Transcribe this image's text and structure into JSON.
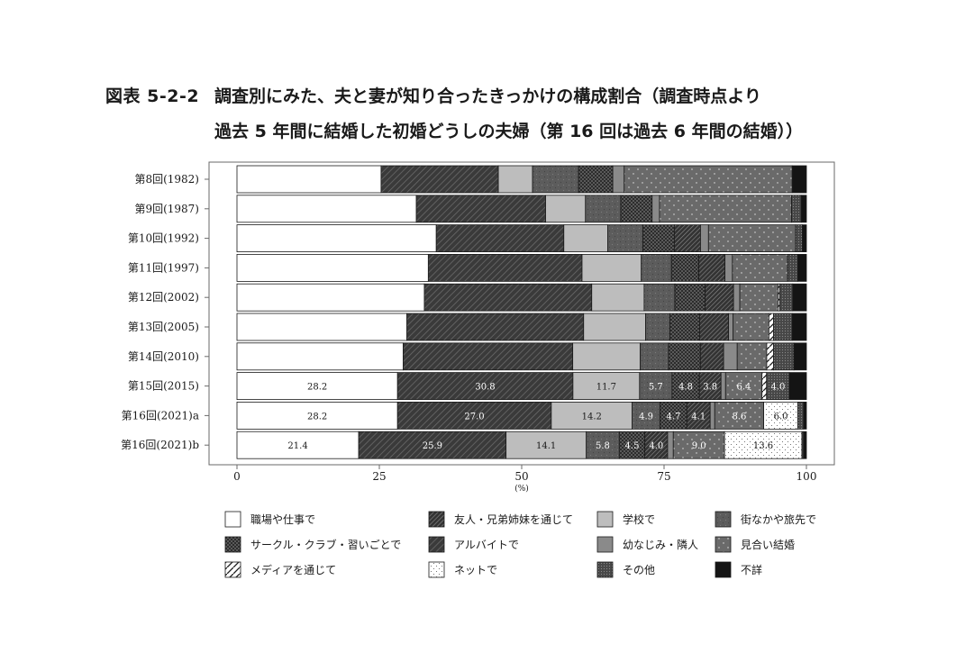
{
  "title": {
    "label": "図表 5-2-2",
    "line1": "調査別にみた、夫と妻が知り合ったきっかけの構成割合（調査時点より",
    "line2": "過去 5 年間に結婚した初婚どうしの夫婦（第 16 回は過去 6 年間の結婚））"
  },
  "chart_data": {
    "type": "bar",
    "orientation": "horizontal-stacked-100",
    "xlabel": "(%)",
    "xlim": [
      0,
      100
    ],
    "xticks": [
      0,
      25,
      50,
      75,
      100
    ],
    "categories": [
      "第8回(1982)",
      "第9回(1987)",
      "第10回(1992)",
      "第11回(1997)",
      "第12回(2002)",
      "第13回(2005)",
      "第14回(2010)",
      "第15回(2015)",
      "第16回(2021)a",
      "第16回(2021)b"
    ],
    "series": [
      {
        "name": "職場や仕事で",
        "fill": "white",
        "color": "#ffffff",
        "values": [
          25.3,
          31.5,
          35.0,
          33.6,
          32.9,
          29.9,
          29.3,
          28.2,
          28.2,
          21.4
        ],
        "labels": [
          "",
          "",
          "",
          "",
          "",
          "",
          "",
          "28.2",
          "28.2",
          "21.4"
        ]
      },
      {
        "name": "アルバイトで",
        "fill": "fwddiag",
        "color": "#3e3e3e",
        "values": [
          20.6,
          22.7,
          22.4,
          27.0,
          29.4,
          31.1,
          29.9,
          30.8,
          27.0,
          25.9
        ],
        "labels": [
          "",
          "",
          "",
          "",
          "",
          "",
          "",
          "30.8",
          "27.0",
          "25.9"
        ]
      },
      {
        "name": "学校で",
        "fill": "lightgray",
        "color": "#bdbdbd",
        "values": [
          6.0,
          7.0,
          7.7,
          10.4,
          9.2,
          10.9,
          11.9,
          11.7,
          14.2,
          14.1
        ],
        "labels": [
          "",
          "",
          "",
          "",
          "",
          "",
          "",
          "11.7",
          "14.2",
          "14.1"
        ]
      },
      {
        "name": "街なかや旅先で",
        "fill": "fuzz",
        "color": "#5c5c5c",
        "values": [
          8.1,
          6.2,
          6.2,
          5.3,
          5.4,
          4.3,
          5.0,
          5.7,
          4.9,
          5.8
        ],
        "labels": [
          "",
          "",
          "",
          "",
          "",
          "",
          "",
          "5.7",
          "4.9",
          "5.8"
        ]
      },
      {
        "name": "サークル・クラブ・習いごとで",
        "fill": "checker",
        "color": "#333333",
        "values": [
          6.0,
          5.5,
          5.5,
          4.8,
          5.3,
          5.2,
          5.6,
          4.8,
          4.7,
          4.5
        ],
        "labels": [
          "",
          "",
          "",
          "",
          "",
          "",
          "",
          "4.8",
          "4.7",
          "4.5"
        ]
      },
      {
        "name": "友人・兄弟姉妹を通じて",
        "fill": "densediag",
        "color": "#4a4a4a",
        "values": [
          0.0,
          0.0,
          4.6,
          4.6,
          5.0,
          5.1,
          4.1,
          3.8,
          4.1,
          4.0
        ],
        "labels": [
          "",
          "",
          "",
          "",
          "",
          "",
          "",
          "3.8",
          "4.1",
          "4.0"
        ]
      },
      {
        "name": "幼なじみ・隣人",
        "fill": "midgray",
        "color": "#8a8a8a",
        "values": [
          2.0,
          1.3,
          1.4,
          1.3,
          1.1,
          0.8,
          2.4,
          0.8,
          0.8,
          1.0
        ],
        "labels": [
          "",
          "",
          "",
          "",
          "",
          "",
          "",
          "",
          "",
          ""
        ]
      },
      {
        "name": "見合い結婚",
        "fill": "dotted",
        "color": "#6a6a6a",
        "values": [
          29.5,
          23.2,
          15.3,
          9.7,
          6.7,
          6.3,
          5.2,
          6.4,
          8.6,
          9.0
        ],
        "labels": [
          "",
          "",
          "",
          "",
          "",
          "",
          "",
          "6.4",
          "8.6",
          "9.0"
        ]
      },
      {
        "name": "メディアを通じて",
        "fill": "slash",
        "color": "#ffffff",
        "values": [
          0.0,
          0.0,
          0.0,
          0.0,
          0.3,
          0.8,
          1.2,
          0.8,
          0.0,
          0.0
        ],
        "labels": [
          "",
          "",
          "",
          "",
          "",
          "",
          "",
          "",
          "",
          ""
        ]
      },
      {
        "name": "ネットで",
        "fill": "sparse",
        "color": "#ffffff",
        "values": [
          0.0,
          0.0,
          0.0,
          0.0,
          0.0,
          0.0,
          0.0,
          0.0,
          6.0,
          13.6
        ],
        "labels": [
          "",
          "",
          "",
          "",
          "",
          "",
          "",
          "",
          "6.0",
          "13.6"
        ]
      },
      {
        "name": "その他",
        "fill": "mesh",
        "color": "#525252",
        "values": [
          0.0,
          1.7,
          1.2,
          1.8,
          2.3,
          3.3,
          3.6,
          4.0,
          1.0,
          0.3
        ],
        "labels": [
          "",
          "",
          "",
          "",
          "",
          "",
          "",
          "4.0",
          "",
          ""
        ]
      },
      {
        "name": "不詳",
        "fill": "black",
        "color": "#141414",
        "values": [
          2.5,
          0.9,
          0.7,
          1.5,
          2.4,
          2.5,
          2.2,
          3.0,
          0.5,
          0.5
        ],
        "labels": [
          "",
          "",
          "",
          "",
          "",
          "",
          "",
          "",
          "",
          ""
        ]
      }
    ],
    "legend": [
      {
        "name": "職場や仕事で",
        "fill": "white"
      },
      {
        "name": "友人・兄弟姉妹を通じて",
        "fill": "densediag"
      },
      {
        "name": "学校で",
        "fill": "lightgray"
      },
      {
        "name": "街なかや旅先で",
        "fill": "fuzz"
      },
      {
        "name": "サークル・クラブ・習いごとで",
        "fill": "checker"
      },
      {
        "name": "アルバイトで",
        "fill": "fwddiag"
      },
      {
        "name": "幼なじみ・隣人",
        "fill": "midgray"
      },
      {
        "name": "見合い結婚",
        "fill": "dotted"
      },
      {
        "name": "メディアを通じて",
        "fill": "slash"
      },
      {
        "name": "ネットで",
        "fill": "sparse"
      },
      {
        "name": "その他",
        "fill": "mesh"
      },
      {
        "name": "不詳",
        "fill": "black"
      }
    ],
    "legend_placement": "bottom",
    "grid": false
  }
}
